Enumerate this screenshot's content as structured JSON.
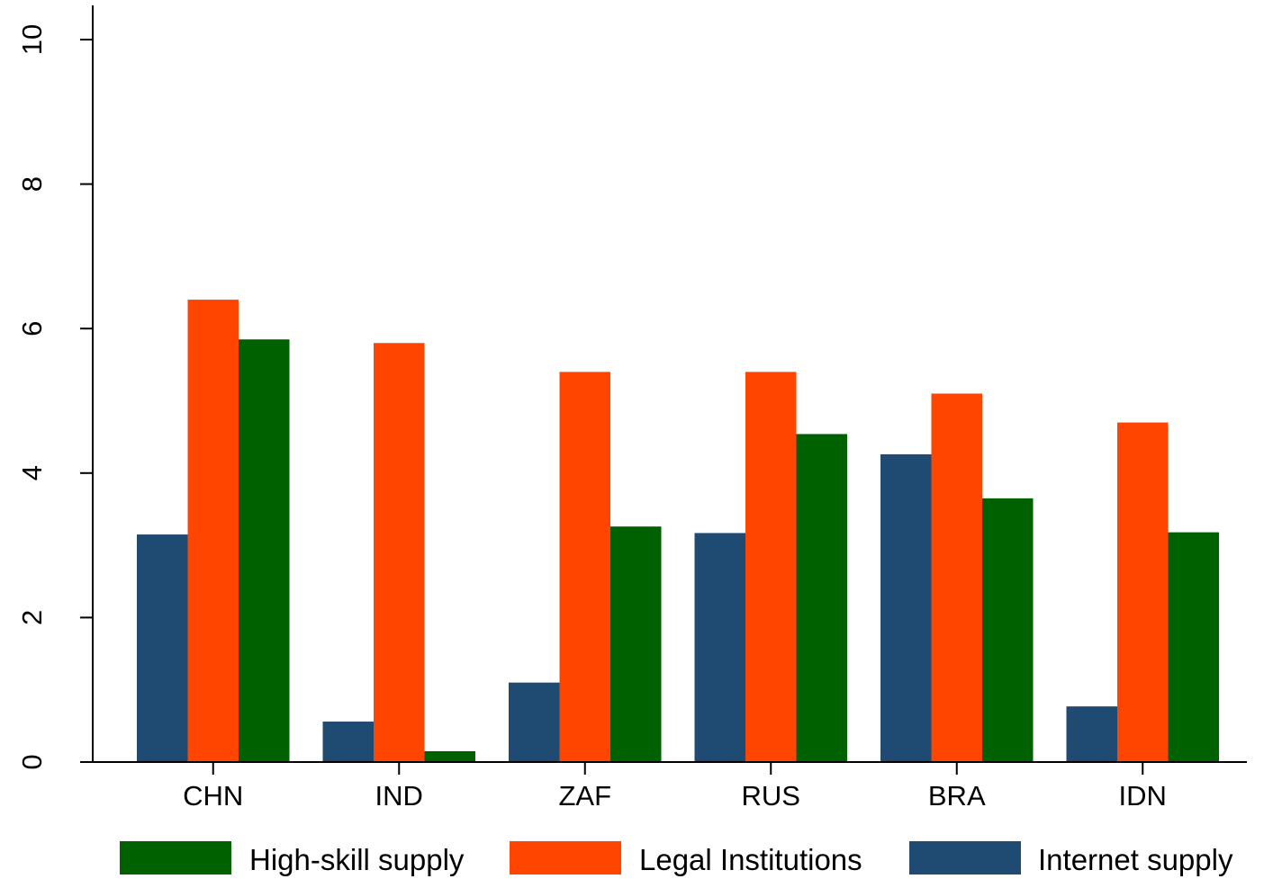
{
  "chart_data": {
    "type": "bar",
    "title": "",
    "xlabel": "",
    "ylabel": "",
    "categories": [
      "CHN",
      "IND",
      "ZAF",
      "RUS",
      "BRA",
      "IDN"
    ],
    "series": [
      {
        "name": "Internet supply",
        "color": "#1f4a72",
        "values": [
          3.15,
          0.56,
          1.1,
          3.17,
          4.26,
          0.77
        ]
      },
      {
        "name": "Legal Institutions",
        "color": "#ff4500",
        "values": [
          6.4,
          5.8,
          5.4,
          5.4,
          5.1,
          4.7
        ]
      },
      {
        "name": "High-skill supply",
        "color": "#006100",
        "values": [
          5.85,
          0.15,
          3.26,
          4.54,
          3.65,
          3.18
        ]
      }
    ],
    "ylim": [
      0,
      10
    ],
    "yticks": [
      "0",
      "2",
      "4",
      "6",
      "8",
      "10"
    ],
    "grid": false,
    "legend": {
      "placement": "bottom",
      "order": [
        "High-skill supply",
        "Legal Institutions",
        "Internet supply"
      ]
    }
  }
}
